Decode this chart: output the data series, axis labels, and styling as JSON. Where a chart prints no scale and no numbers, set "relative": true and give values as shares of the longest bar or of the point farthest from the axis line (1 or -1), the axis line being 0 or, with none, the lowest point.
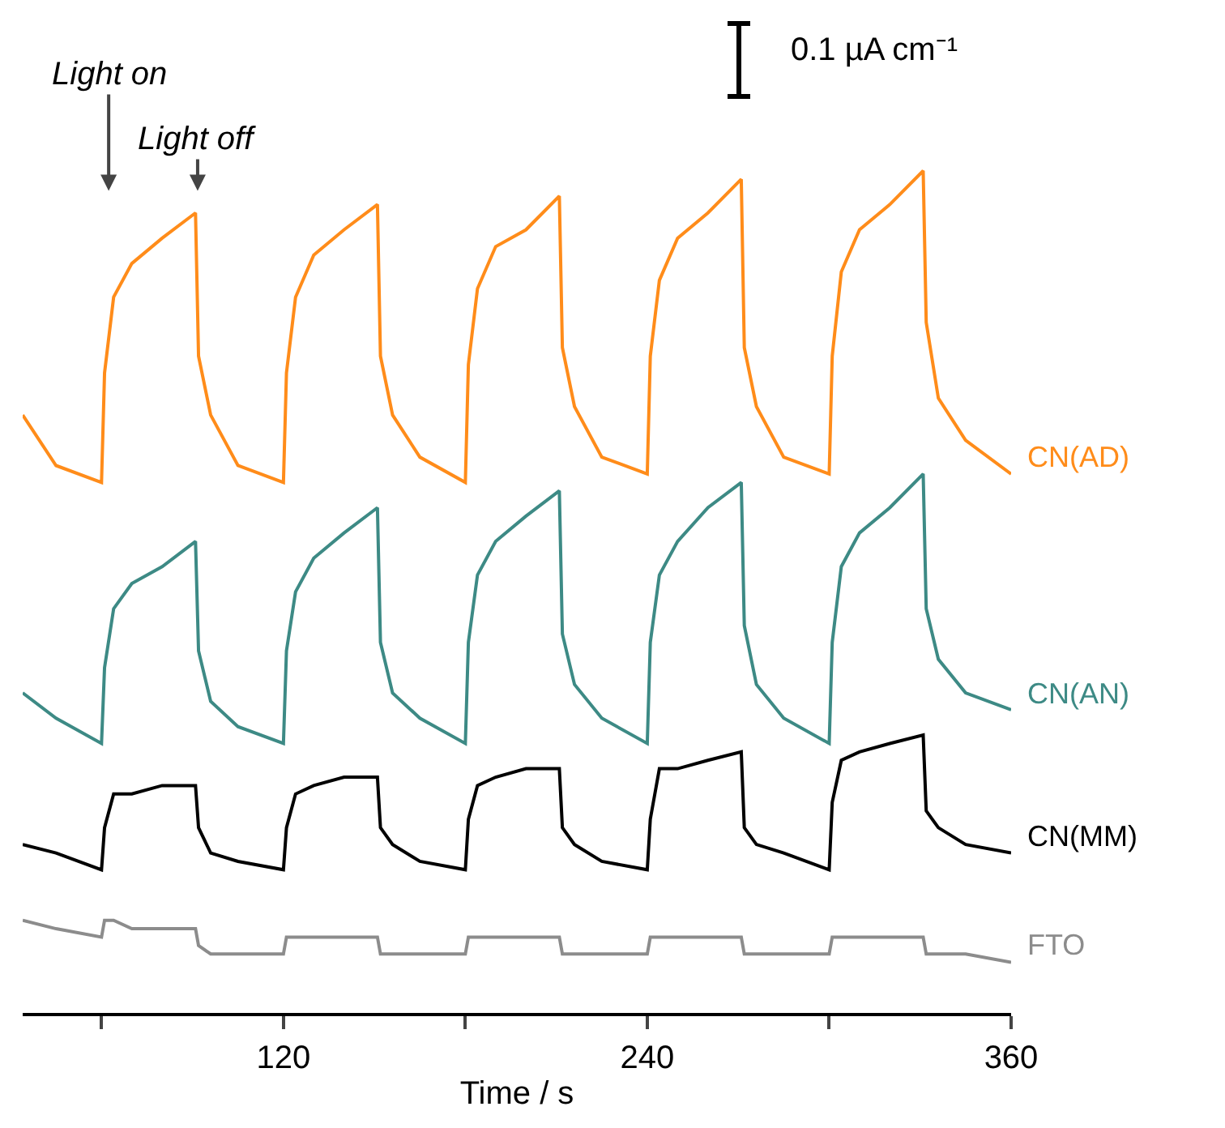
{
  "chart_data": {
    "type": "line",
    "relative": true,
    "xlabel": "Time / s",
    "xlim": [
      34,
      360
    ],
    "xticks": [
      {
        "value": 60,
        "label": null
      },
      120,
      {
        "value": 180,
        "label": null
      },
      240,
      {
        "value": 300,
        "label": null
      },
      360
    ],
    "x": [
      34,
      45,
      60,
      61,
      64,
      70,
      80,
      91,
      92,
      96,
      105,
      120,
      121,
      124,
      130,
      140,
      151,
      152,
      156,
      165,
      180,
      181,
      184,
      190,
      200,
      211,
      212,
      216,
      225,
      240,
      241,
      244,
      250,
      260,
      271,
      272,
      276,
      285,
      300,
      301,
      304,
      310,
      320,
      331,
      332,
      336,
      345,
      360
    ],
    "series": [
      {
        "name": "CN(AD)",
        "color": "#ff8c1a",
        "values": [
          0.71,
          0.65,
          0.63,
          0.76,
          0.85,
          0.89,
          0.92,
          0.95,
          0.78,
          0.71,
          0.65,
          0.63,
          0.76,
          0.85,
          0.9,
          0.93,
          0.96,
          0.78,
          0.71,
          0.66,
          0.63,
          0.77,
          0.86,
          0.91,
          0.93,
          0.97,
          0.79,
          0.72,
          0.66,
          0.64,
          0.78,
          0.87,
          0.92,
          0.95,
          0.99,
          0.79,
          0.72,
          0.66,
          0.64,
          0.78,
          0.88,
          0.93,
          0.96,
          1.0,
          0.82,
          0.73,
          0.68,
          0.64
        ]
      },
      {
        "name": "CN(AN)",
        "color": "#3d8a85",
        "values": [
          0.38,
          0.35,
          0.32,
          0.41,
          0.48,
          0.51,
          0.53,
          0.56,
          0.43,
          0.37,
          0.34,
          0.32,
          0.43,
          0.5,
          0.54,
          0.57,
          0.6,
          0.44,
          0.38,
          0.35,
          0.32,
          0.44,
          0.52,
          0.56,
          0.59,
          0.62,
          0.45,
          0.39,
          0.35,
          0.32,
          0.44,
          0.52,
          0.56,
          0.6,
          0.63,
          0.46,
          0.39,
          0.35,
          0.32,
          0.44,
          0.53,
          0.57,
          0.6,
          0.64,
          0.48,
          0.42,
          0.38,
          0.36
        ]
      },
      {
        "name": "CN(MM)",
        "color": "#000000",
        "values": [
          0.2,
          0.19,
          0.17,
          0.22,
          0.26,
          0.26,
          0.27,
          0.27,
          0.22,
          0.19,
          0.18,
          0.17,
          0.22,
          0.26,
          0.27,
          0.28,
          0.28,
          0.22,
          0.2,
          0.18,
          0.17,
          0.23,
          0.27,
          0.28,
          0.29,
          0.29,
          0.22,
          0.2,
          0.18,
          0.17,
          0.23,
          0.29,
          0.29,
          0.3,
          0.31,
          0.22,
          0.2,
          0.19,
          0.17,
          0.25,
          0.3,
          0.31,
          0.32,
          0.33,
          0.24,
          0.22,
          0.2,
          0.19
        ]
      },
      {
        "name": "FTO",
        "color": "#8c8c8c",
        "values": [
          0.11,
          0.1,
          0.09,
          0.11,
          0.11,
          0.1,
          0.1,
          0.1,
          0.08,
          0.07,
          0.07,
          0.07,
          0.09,
          0.09,
          0.09,
          0.09,
          0.09,
          0.07,
          0.07,
          0.07,
          0.07,
          0.09,
          0.09,
          0.09,
          0.09,
          0.09,
          0.07,
          0.07,
          0.07,
          0.07,
          0.09,
          0.09,
          0.09,
          0.09,
          0.09,
          0.07,
          0.07,
          0.07,
          0.07,
          0.09,
          0.09,
          0.09,
          0.09,
          0.09,
          0.07,
          0.07,
          0.07,
          0.06
        ]
      }
    ],
    "annotations": [
      "Light on",
      "Light off",
      "0.1 µA cm⁻¹"
    ],
    "legend": false,
    "grid": false,
    "marker": "none",
    "line_style": "solid"
  }
}
